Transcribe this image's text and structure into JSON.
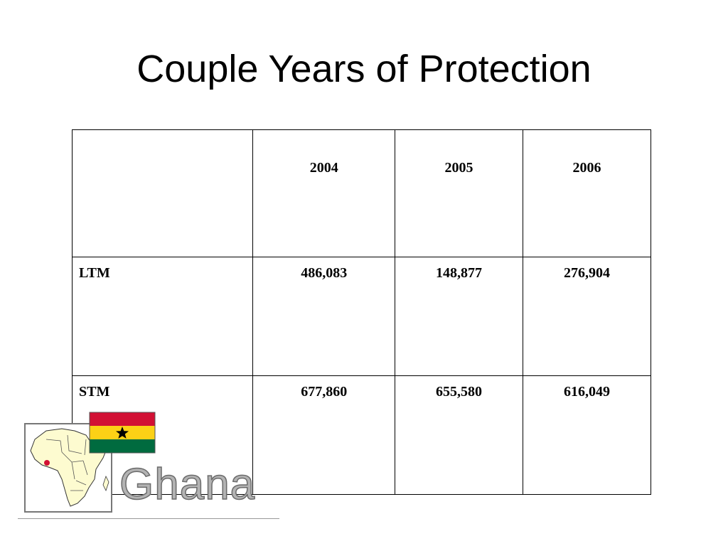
{
  "slide": {
    "title": "Couple Years of Protection"
  },
  "table": {
    "columns": [
      "",
      "2004",
      "2005",
      "2006"
    ],
    "rows": [
      {
        "label": "LTM",
        "values": [
          "486,083",
          "148,877",
          "276,904"
        ]
      },
      {
        "label": "STM",
        "values": [
          "677,860",
          "655,580",
          "616,049"
        ]
      }
    ]
  },
  "logo": {
    "text": "Ghana",
    "flag_colors": [
      "#d21034",
      "#fcd116",
      "#006b3f"
    ],
    "star_color": "#000000",
    "map_fill": "#fdfbd0",
    "country_highlight": "#d21034"
  }
}
